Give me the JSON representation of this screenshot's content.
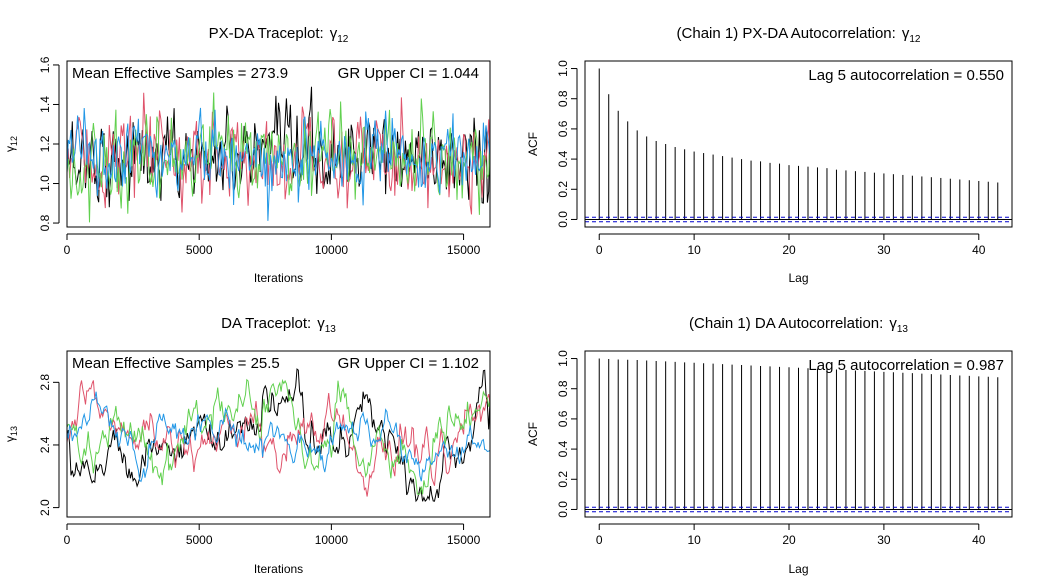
{
  "colors": {
    "chain1": "#000000",
    "chain2": "#DF536B",
    "chain3": "#61D04F",
    "chain4": "#2297E6",
    "ci_line": "#0000CD"
  },
  "chart_data": [
    {
      "id": "trace_px_da",
      "type": "line",
      "title": "PX-DA Traceplot:",
      "title_symbol": "γ",
      "title_subscript": "12",
      "xlabel": "Iterations",
      "ylabel_symbol": "γ",
      "ylabel_subscript": "12",
      "xlim": [
        0,
        16000
      ],
      "ylim": [
        0.78,
        1.62
      ],
      "xticks": [
        0,
        5000,
        10000,
        15000
      ],
      "yticks": [
        0.8,
        1.0,
        1.2,
        1.4,
        1.6
      ],
      "ytick_labels": [
        "0.8",
        "1.0",
        "1.2",
        "1.4",
        "1.6"
      ],
      "annotation_left": "Mean Effective Samples = 273.9",
      "annotation_right": "GR Upper CI = 1.044",
      "n_iter": 16000,
      "series": [
        {
          "color": "#000000",
          "mean": 1.13,
          "sd": 0.11,
          "min": 0.82,
          "max": 1.49
        },
        {
          "color": "#DF536B",
          "mean": 1.13,
          "sd": 0.11,
          "min": 0.8,
          "max": 1.58
        },
        {
          "color": "#61D04F",
          "mean": 1.13,
          "sd": 0.11,
          "min": 0.8,
          "max": 1.5
        },
        {
          "color": "#2297E6",
          "mean": 1.13,
          "sd": 0.1,
          "min": 0.8,
          "max": 1.44
        }
      ]
    },
    {
      "id": "acf_px_da",
      "type": "bar",
      "title": "(Chain 1) PX-DA Autocorrelation:",
      "title_symbol": "γ",
      "title_subscript": "12",
      "xlabel": "Lag",
      "ylabel": "ACF",
      "xlim": [
        -1.5,
        43.5
      ],
      "ylim": [
        -0.05,
        1.05
      ],
      "xticks": [
        0,
        10,
        20,
        30,
        40
      ],
      "yticks": [
        0.0,
        0.2,
        0.4,
        0.6,
        0.8,
        1.0
      ],
      "ytick_labels": [
        "0.0",
        "0.2",
        "0.4",
        "0.6",
        "0.8",
        "1.0"
      ],
      "annotation": "Lag 5 autocorrelation = 0.550",
      "ci": 0.015,
      "lags": [
        0,
        1,
        2,
        3,
        4,
        5,
        6,
        7,
        8,
        9,
        10,
        11,
        12,
        13,
        14,
        15,
        16,
        17,
        18,
        19,
        20,
        21,
        22,
        23,
        24,
        25,
        26,
        27,
        28,
        29,
        30,
        31,
        32,
        33,
        34,
        35,
        36,
        37,
        38,
        39,
        40,
        41,
        42
      ],
      "values": [
        1.0,
        0.83,
        0.72,
        0.65,
        0.59,
        0.55,
        0.52,
        0.5,
        0.48,
        0.465,
        0.45,
        0.44,
        0.43,
        0.42,
        0.41,
        0.4,
        0.39,
        0.385,
        0.375,
        0.37,
        0.36,
        0.355,
        0.35,
        0.345,
        0.34,
        0.33,
        0.325,
        0.32,
        0.315,
        0.31,
        0.305,
        0.3,
        0.295,
        0.29,
        0.285,
        0.28,
        0.275,
        0.27,
        0.265,
        0.26,
        0.255,
        0.25,
        0.245
      ]
    },
    {
      "id": "trace_da",
      "type": "line",
      "title": "DA Traceplot:",
      "title_symbol": "γ",
      "title_subscript": "13",
      "xlabel": "Iterations",
      "ylabel_symbol": "γ",
      "ylabel_subscript": "13",
      "xlim": [
        0,
        16000
      ],
      "ylim": [
        1.94,
        3.0
      ],
      "xticks": [
        0,
        5000,
        10000,
        15000
      ],
      "yticks": [
        2.0,
        2.4,
        2.8
      ],
      "ytick_labels": [
        "2.0",
        "2.4",
        "2.8"
      ],
      "annotation_left": "Mean Effective Samples = 25.5",
      "annotation_right": "GR Upper CI = 1.102",
      "n_iter": 16000,
      "series": [
        {
          "color": "#000000",
          "mean": 2.48,
          "sd": 0.16,
          "min": 2.04,
          "max": 2.98
        },
        {
          "color": "#DF536B",
          "mean": 2.45,
          "sd": 0.15,
          "min": 2.06,
          "max": 3.0
        },
        {
          "color": "#61D04F",
          "mean": 2.5,
          "sd": 0.15,
          "min": 2.08,
          "max": 2.82
        },
        {
          "color": "#2297E6",
          "mean": 2.45,
          "sd": 0.12,
          "min": 2.16,
          "max": 2.76
        }
      ]
    },
    {
      "id": "acf_da",
      "type": "bar",
      "title": "(Chain 1) DA Autocorrelation:",
      "title_symbol": "γ",
      "title_subscript": "13",
      "xlabel": "Lag",
      "ylabel": "ACF",
      "xlim": [
        -1.5,
        43.5
      ],
      "ylim": [
        -0.05,
        1.05
      ],
      "xticks": [
        0,
        10,
        20,
        30,
        40
      ],
      "yticks": [
        0.0,
        0.2,
        0.4,
        0.6,
        0.8,
        1.0
      ],
      "ytick_labels": [
        "0.0",
        "0.2",
        "0.4",
        "0.6",
        "0.8",
        "1.0"
      ],
      "annotation": "Lag 5 autocorrelation = 0.987",
      "ci": 0.015,
      "lags": [
        0,
        1,
        2,
        3,
        4,
        5,
        6,
        7,
        8,
        9,
        10,
        11,
        12,
        13,
        14,
        15,
        16,
        17,
        18,
        19,
        20,
        21,
        22,
        23,
        24,
        25,
        26,
        27,
        28,
        29,
        30,
        31,
        32,
        33,
        34,
        35,
        36,
        37,
        38,
        39,
        40,
        41,
        42
      ],
      "values": [
        1.0,
        0.997,
        0.994,
        0.992,
        0.99,
        0.987,
        0.984,
        0.981,
        0.978,
        0.975,
        0.972,
        0.969,
        0.966,
        0.963,
        0.96,
        0.957,
        0.954,
        0.951,
        0.948,
        0.945,
        0.942,
        0.939,
        0.936,
        0.933,
        0.93,
        0.927,
        0.924,
        0.921,
        0.918,
        0.915,
        0.912,
        0.909,
        0.906,
        0.903,
        0.9,
        0.897,
        0.894,
        0.891,
        0.888,
        0.885,
        0.882,
        0.879,
        0.876
      ]
    }
  ]
}
